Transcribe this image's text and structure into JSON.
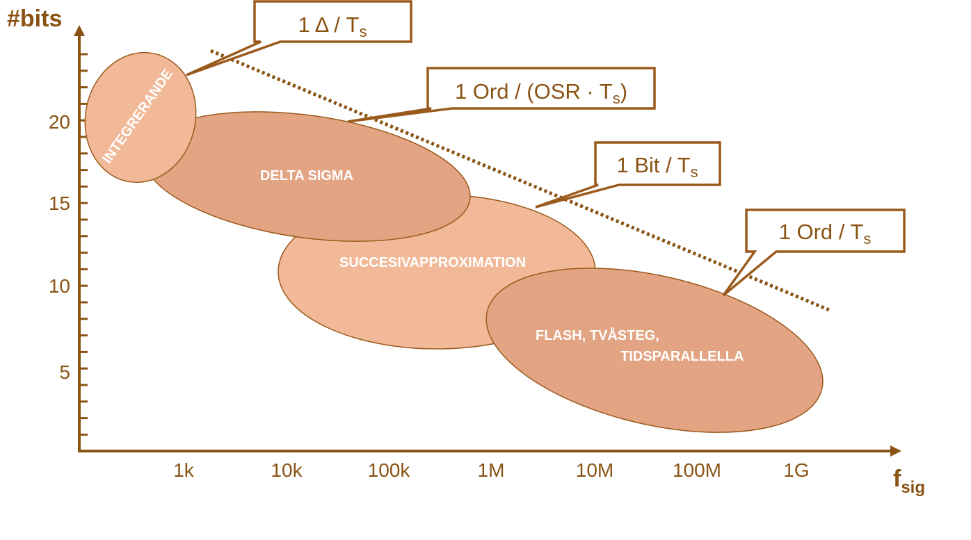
{
  "axes": {
    "y_label": "#bits",
    "x_label_main": "f",
    "x_label_sub": "sig",
    "y_ticks": [
      "20",
      "15",
      "10",
      "5"
    ],
    "x_ticks": [
      "1k",
      "10k",
      "100k",
      "1M",
      "10M",
      "100M",
      "1G"
    ]
  },
  "regions": {
    "integrerande": "INTEGRERANDE",
    "delta_sigma": "DELTA SIGMA",
    "succesiv": "SUCCESIVAPPROXIMATION",
    "flash_line1": "FLASH, TVÅSTEG,",
    "flash_line2": "TIDSPARALLELLA"
  },
  "callouts": {
    "delta": {
      "main": "1 Δ / T",
      "sub": "s"
    },
    "ord_osr": {
      "main": "1 Ord / (OSR · T",
      "sub": "s",
      "tail": ")"
    },
    "bit": {
      "main": "1 Bit / T",
      "sub": "s"
    },
    "ord": {
      "main": "1 Ord / T",
      "sub": "s"
    }
  },
  "colors": {
    "axis": "#8a5313",
    "region_light": "#f1b997",
    "region_dark": "#e2a482",
    "border": "#9a5a1c"
  }
}
